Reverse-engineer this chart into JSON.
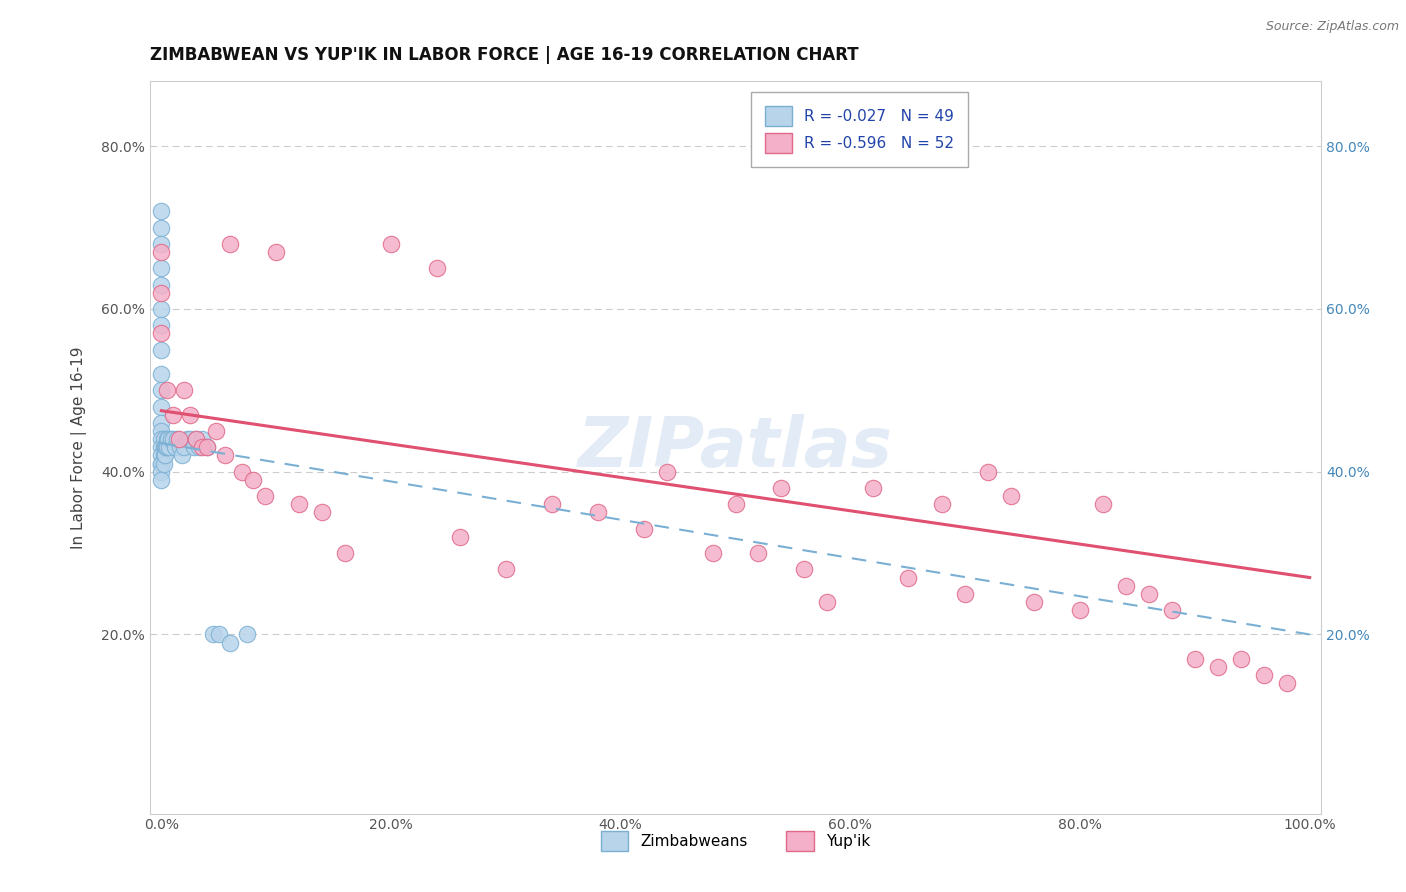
{
  "title": "ZIMBABWEAN VS YUP'IK IN LABOR FORCE | AGE 16-19 CORRELATION CHART",
  "source": "Source: ZipAtlas.com",
  "ylabel": "In Labor Force | Age 16-19",
  "xlim": [
    -0.01,
    1.01
  ],
  "ylim": [
    -0.02,
    0.88
  ],
  "x_ticks": [
    0.0,
    0.2,
    0.4,
    0.6,
    0.8,
    1.0
  ],
  "x_tick_labels": [
    "0.0%",
    "20.0%",
    "40.0%",
    "60.0%",
    "80.0%",
    "100.0%"
  ],
  "y_ticks": [
    0.2,
    0.4,
    0.6,
    0.8
  ],
  "y_tick_labels": [
    "20.0%",
    "40.0%",
    "60.0%",
    "80.0%"
  ],
  "legend_r1": "R = -0.027",
  "legend_n1": "N = 49",
  "legend_r2": "R = -0.596",
  "legend_n2": "N = 52",
  "zimbabwean_face": "#b8d4ea",
  "zimbabwean_edge": "#7aafd4",
  "yupik_face": "#f4b0c8",
  "yupik_edge": "#e06888",
  "trend_blue": "#7aafd4",
  "trend_pink": "#e05070",
  "grid_color": "#cccccc",
  "watermark": "ZIPatlas",
  "title_color": "#111111",
  "ylabel_color": "#444444",
  "tick_color": "#555555",
  "right_tick_color": "#4488bb",
  "source_color": "#777777",
  "zim_x": [
    0.0,
    0.0,
    0.0,
    0.0,
    0.0,
    0.0,
    0.0,
    0.0,
    0.0,
    0.0,
    0.0,
    0.0,
    0.0,
    0.0,
    0.0,
    0.0,
    0.0,
    0.0,
    0.0,
    0.0,
    0.002,
    0.002,
    0.002,
    0.002,
    0.003,
    0.003,
    0.004,
    0.005,
    0.005,
    0.006,
    0.007,
    0.008,
    0.01,
    0.012,
    0.014,
    0.016,
    0.018,
    0.02,
    0.022,
    0.025,
    0.028,
    0.03,
    0.033,
    0.035,
    0.04,
    0.045,
    0.05,
    0.06,
    0.075
  ],
  "zim_y": [
    0.72,
    0.7,
    0.68,
    0.65,
    0.63,
    0.6,
    0.58,
    0.55,
    0.52,
    0.5,
    0.48,
    0.46,
    0.45,
    0.44,
    0.43,
    0.42,
    0.41,
    0.41,
    0.4,
    0.39,
    0.44,
    0.43,
    0.42,
    0.41,
    0.43,
    0.42,
    0.43,
    0.44,
    0.43,
    0.44,
    0.43,
    0.44,
    0.44,
    0.43,
    0.44,
    0.43,
    0.42,
    0.43,
    0.44,
    0.44,
    0.43,
    0.44,
    0.43,
    0.44,
    0.43,
    0.2,
    0.2,
    0.19,
    0.2
  ],
  "yupik_x": [
    0.0,
    0.0,
    0.0,
    0.005,
    0.01,
    0.015,
    0.02,
    0.025,
    0.03,
    0.035,
    0.04,
    0.048,
    0.055,
    0.06,
    0.07,
    0.08,
    0.09,
    0.1,
    0.12,
    0.14,
    0.16,
    0.2,
    0.24,
    0.26,
    0.3,
    0.34,
    0.38,
    0.42,
    0.44,
    0.48,
    0.5,
    0.52,
    0.54,
    0.56,
    0.58,
    0.62,
    0.65,
    0.68,
    0.7,
    0.72,
    0.74,
    0.76,
    0.8,
    0.82,
    0.84,
    0.86,
    0.88,
    0.9,
    0.92,
    0.94,
    0.96,
    0.98
  ],
  "yupik_y": [
    0.67,
    0.62,
    0.57,
    0.5,
    0.47,
    0.44,
    0.5,
    0.47,
    0.44,
    0.43,
    0.43,
    0.45,
    0.42,
    0.68,
    0.4,
    0.39,
    0.37,
    0.67,
    0.36,
    0.35,
    0.3,
    0.68,
    0.65,
    0.32,
    0.28,
    0.36,
    0.35,
    0.33,
    0.4,
    0.3,
    0.36,
    0.3,
    0.38,
    0.28,
    0.24,
    0.38,
    0.27,
    0.36,
    0.25,
    0.4,
    0.37,
    0.24,
    0.23,
    0.36,
    0.26,
    0.25,
    0.23,
    0.17,
    0.16,
    0.17,
    0.15,
    0.14
  ]
}
